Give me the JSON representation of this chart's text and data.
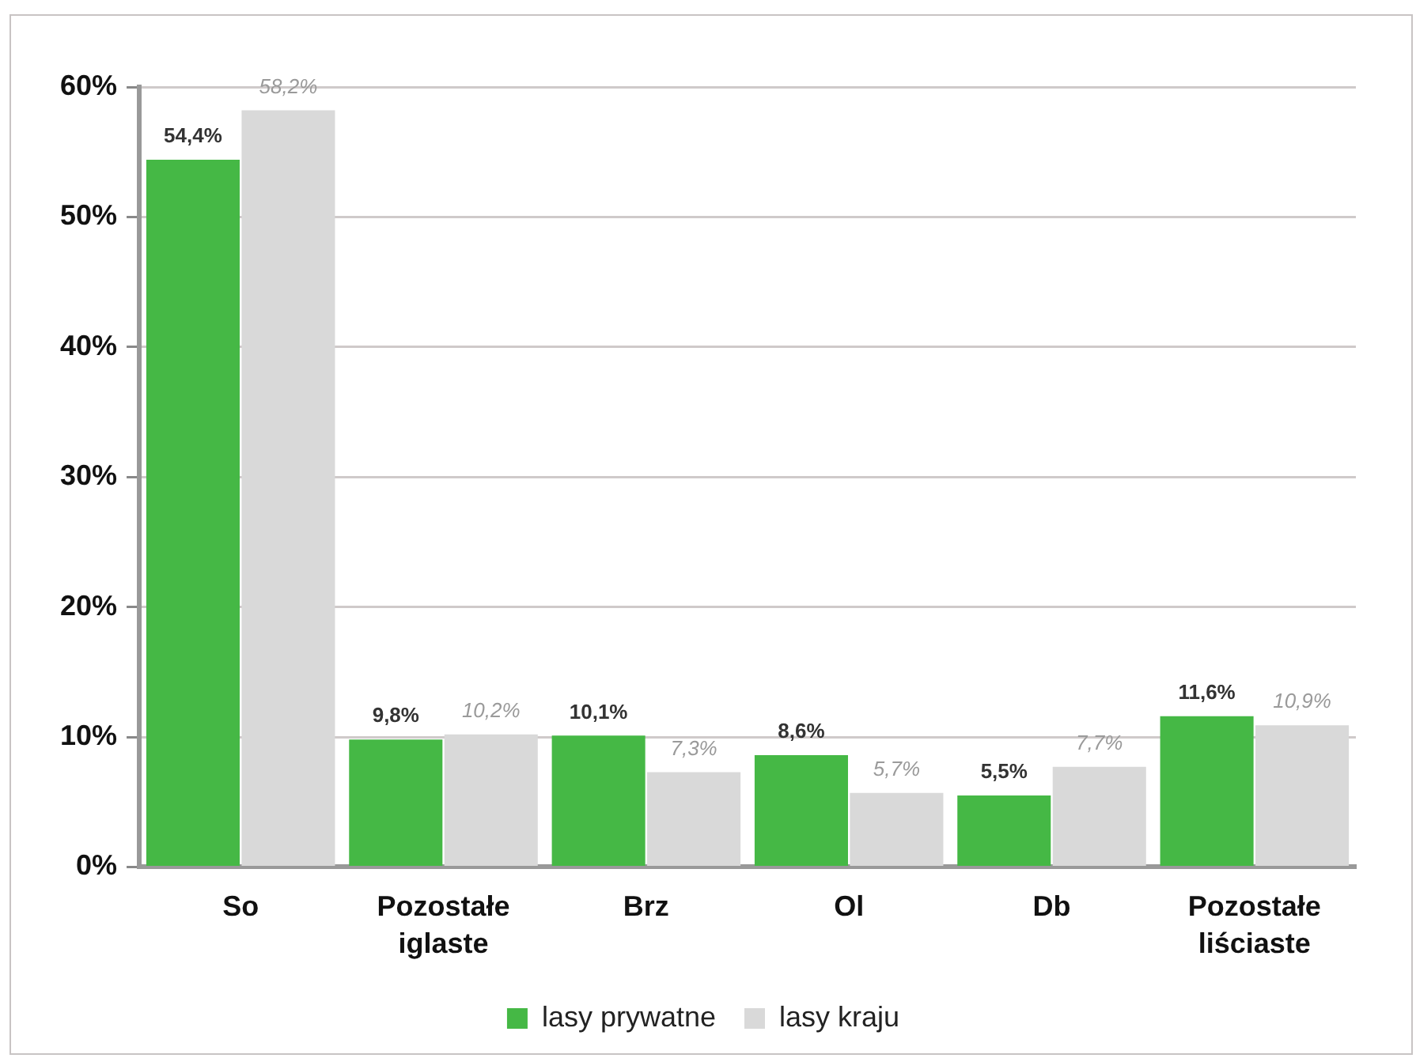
{
  "chart_data": {
    "type": "bar",
    "categories": [
      "So",
      "Pozostałe iglaste",
      "Brz",
      "Ol",
      "Db",
      "Pozostałe liściaste"
    ],
    "series": [
      {
        "name": "lasy prywatne",
        "color": "#45b845",
        "values": [
          54.4,
          9.8,
          10.1,
          8.6,
          5.5,
          11.6
        ],
        "value_labels": [
          "54,4%",
          "9,8%",
          "10,1%",
          "8,6%",
          "5,5%",
          "11,6%"
        ]
      },
      {
        "name": "lasy kraju",
        "color": "#d9d9d9",
        "values": [
          58.2,
          10.2,
          7.3,
          5.7,
          7.7,
          10.9
        ],
        "value_labels": [
          "58,2%",
          "10,2%",
          "7,3%",
          "5,7%",
          "7,7%",
          "10,9%"
        ]
      }
    ],
    "ylim": [
      0,
      60
    ],
    "yticks": [
      {
        "value": 0,
        "label": "0%"
      },
      {
        "value": 10,
        "label": "10%"
      },
      {
        "value": 20,
        "label": "20%"
      },
      {
        "value": 30,
        "label": "30%"
      },
      {
        "value": 40,
        "label": "40%"
      },
      {
        "value": 50,
        "label": "50%"
      },
      {
        "value": 60,
        "label": "60%"
      }
    ],
    "grid": "y",
    "legend": "bottom"
  }
}
